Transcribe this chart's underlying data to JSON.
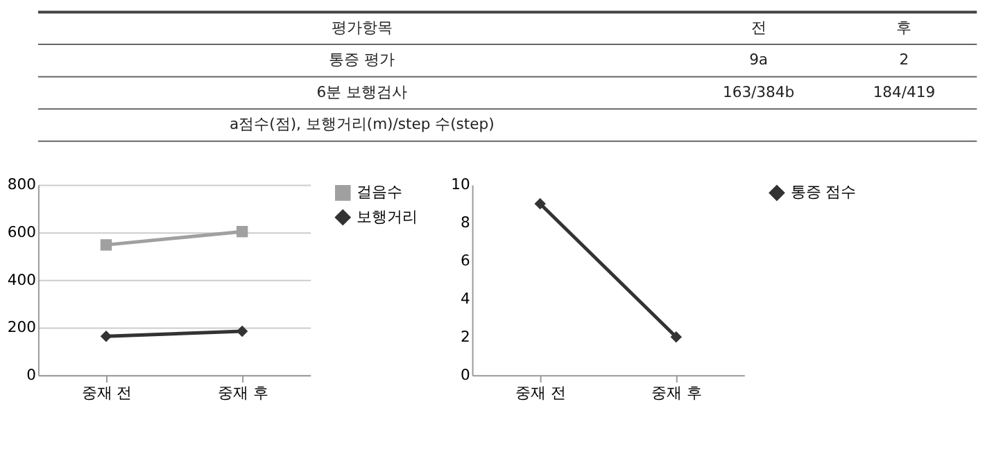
{
  "chart_data": [
    {
      "type": "other",
      "categories": [
        "평가항목",
        "전",
        "후"
      ],
      "y_categories": [
        "통증 평가",
        "6분 보행검사"
      ],
      "cell_labels": [
        [
          "9a",
          "2"
        ],
        [
          "163/384b",
          "184/419"
        ]
      ],
      "annotations": [
        "a점수(점), 보행거리(m)/step 수(step)"
      ]
    },
    {
      "type": "line",
      "categories": [
        "중재 전",
        "중재 후"
      ],
      "ylim": [
        0,
        800
      ],
      "yticks": [
        0,
        200,
        400,
        600,
        800
      ],
      "grid": "y",
      "legend": "right",
      "series": [
        {
          "name": "걸음수",
          "color": "#a0a0a0",
          "values": [
            547,
            603
          ],
          "marker": "square"
        },
        {
          "name": "보행거리",
          "color": "#333333",
          "values": [
            163,
            184
          ],
          "marker": "diamond"
        }
      ]
    },
    {
      "type": "line",
      "categories": [
        "중재 전",
        "중재 후"
      ],
      "ylim": [
        0,
        10
      ],
      "yticks": [
        0,
        2,
        4,
        6,
        8,
        10
      ],
      "legend": "right",
      "series": [
        {
          "name": "통증 점수",
          "color": "#333333",
          "values": [
            9,
            2
          ],
          "marker": "diamond"
        }
      ]
    }
  ]
}
